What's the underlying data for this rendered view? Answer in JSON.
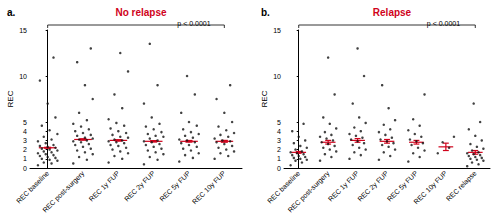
{
  "chart_data": [
    {
      "type": "scatter",
      "panel": "a.",
      "title": "No relapse",
      "annotation": "p < 0.0001",
      "ylabel": "REC",
      "categories": [
        "REC baseline",
        "REC post-surgery",
        "REC 1y FUP",
        "REC 2y FUP",
        "REC 5y FUP",
        "REC 10y FUP"
      ],
      "values": [
        [
          0.3,
          0.5,
          0.6,
          0.8,
          0.9,
          1.0,
          1.1,
          1.2,
          1.3,
          1.4,
          1.5,
          1.6,
          1.7,
          1.8,
          1.9,
          2.0,
          2.1,
          2.2,
          2.3,
          2.4,
          2.5,
          2.7,
          2.9,
          3.1,
          3.4,
          3.7,
          4.1,
          4.6,
          5.5,
          7.0,
          9.5,
          12.0
        ],
        [
          0.5,
          0.9,
          1.2,
          1.5,
          1.7,
          1.9,
          2.1,
          2.3,
          2.5,
          2.6,
          2.8,
          2.9,
          3.0,
          3.1,
          3.2,
          3.3,
          3.5,
          3.6,
          3.8,
          4.0,
          4.2,
          4.5,
          4.8,
          5.2,
          6.0,
          7.5,
          9.0,
          11.5,
          13.0
        ],
        [
          0.6,
          1.0,
          1.3,
          1.6,
          1.8,
          2.0,
          2.2,
          2.4,
          2.5,
          2.7,
          2.8,
          2.9,
          3.0,
          3.1,
          3.3,
          3.4,
          3.6,
          3.8,
          4.0,
          4.3,
          4.6,
          4.9,
          5.3,
          6.5,
          8.0,
          10.5,
          12.5
        ],
        [
          0.4,
          0.9,
          1.2,
          1.5,
          1.7,
          1.9,
          2.1,
          2.3,
          2.5,
          2.6,
          2.8,
          2.9,
          3.0,
          3.2,
          3.4,
          3.5,
          3.7,
          3.9,
          4.2,
          4.5,
          4.8,
          5.5,
          7.0,
          9.0,
          13.5
        ],
        [
          0.7,
          1.1,
          1.4,
          1.6,
          1.9,
          2.1,
          2.3,
          2.5,
          2.7,
          2.8,
          3.0,
          3.1,
          3.3,
          3.5,
          3.7,
          3.9,
          4.2,
          4.6,
          5.0,
          6.0,
          8.0,
          10.0
        ],
        [
          1.0,
          1.3,
          1.6,
          1.8,
          2.0,
          2.2,
          2.4,
          2.6,
          2.8,
          2.9,
          3.0,
          3.2,
          3.4,
          3.6,
          3.8,
          4.1,
          4.5,
          5.0,
          6.0,
          7.5,
          9.0
        ]
      ],
      "means": [
        2.2,
        3.1,
        3.0,
        2.9,
        2.9,
        2.9
      ],
      "errors": [
        0.05,
        0.08,
        0.08,
        0.08,
        0.09,
        0.1
      ],
      "color": "#111111",
      "ylim": [
        0,
        15
      ],
      "yticks": [
        0,
        1,
        2,
        3,
        4,
        5,
        10,
        15
      ],
      "grid": false
    },
    {
      "type": "scatter",
      "panel": "b.",
      "title": "Relapse",
      "annotation": "p < 0.0001",
      "ylabel": "REC",
      "categories": [
        "REC baseline",
        "REC post-surgery",
        "REC 1y FUP",
        "REC 2y FUP",
        "REC 5y FUP",
        "REC 10y FUP",
        "REC relapse"
      ],
      "values": [
        [
          0.3,
          0.6,
          0.8,
          0.9,
          1.0,
          1.1,
          1.2,
          1.3,
          1.4,
          1.5,
          1.6,
          1.7,
          1.8,
          2.0,
          2.2,
          2.4,
          2.7,
          3.0,
          3.4,
          4.0,
          4.8
        ],
        [
          0.8,
          1.2,
          1.5,
          1.8,
          2.0,
          2.2,
          2.4,
          2.6,
          2.8,
          3.0,
          3.2,
          3.4,
          3.6,
          3.9,
          4.3,
          4.8,
          5.5,
          8.0,
          12.0
        ],
        [
          1.0,
          1.4,
          1.7,
          2.0,
          2.2,
          2.5,
          2.7,
          2.9,
          3.1,
          3.3,
          3.5,
          3.7,
          4.0,
          4.4,
          4.9,
          5.5,
          7.0,
          10.0,
          13.0
        ],
        [
          0.9,
          1.3,
          1.7,
          2.0,
          2.3,
          2.5,
          2.7,
          2.9,
          3.1,
          3.3,
          3.6,
          3.9,
          4.2,
          4.7,
          5.2,
          6.5,
          9.0
        ],
        [
          0.7,
          1.2,
          1.6,
          1.9,
          2.2,
          2.5,
          2.7,
          2.9,
          3.1,
          3.4,
          3.7,
          4.1,
          4.6,
          5.3,
          8.0
        ],
        [
          1.6,
          2.2,
          2.8,
          3.4
        ],
        [
          0.2,
          0.4,
          0.6,
          0.8,
          0.9,
          1.0,
          1.1,
          1.2,
          1.3,
          1.4,
          1.5,
          1.6,
          1.7,
          1.9,
          2.1,
          2.3,
          2.6,
          3.0,
          3.5,
          4.2,
          5.0,
          7.0
        ]
      ],
      "means": [
        1.7,
        2.8,
        3.0,
        2.9,
        2.8,
        2.3,
        1.7
      ],
      "errors": [
        0.1,
        0.2,
        0.2,
        0.2,
        0.2,
        0.4,
        0.2
      ],
      "color": "#111111",
      "ylim": [
        0,
        15
      ],
      "yticks": [
        0,
        1,
        2,
        3,
        4,
        5,
        10,
        15
      ],
      "grid": false
    }
  ]
}
